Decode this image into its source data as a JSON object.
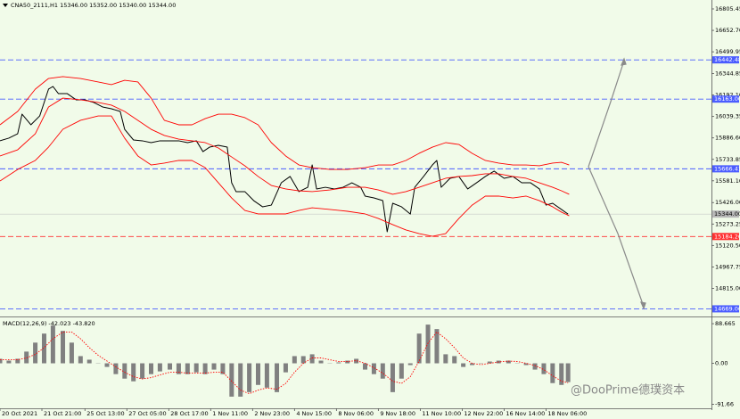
{
  "chart_data": [
    {
      "type": "line",
      "title": "CNA50_2111,H1 15346.00 15352.00 15340.00 15344.00",
      "xlim": [
        0,
        645
      ],
      "ylim": [
        14614.7,
        16868.95
      ],
      "yticks": [
        16805.45,
        {
          "value": 16652.7,
          "label": "16652.70"
        },
        16499.95,
        16344.85,
        {
          "value": 16192.1,
          "label": "16192.10"
        },
        16039.35,
        {
          "value": 15886.6,
          "label": "15886.60"
        },
        15733.85,
        {
          "value": 15581.1,
          "label": "15581.10"
        },
        {
          "value": 15426,
          "label": "15426.00"
        },
        15273.25,
        {
          "value": 15120.5,
          "label": "15120.50"
        },
        14967.75,
        {
          "value": 14815,
          "label": "14815.00"
        }
      ],
      "series": [
        {
          "color": "#000000",
          "x": [
            0,
            8,
            16,
            20,
            28,
            36,
            44,
            48,
            53,
            61,
            69,
            77,
            85,
            93,
            101,
            109,
            113,
            121,
            129,
            137,
            145,
            154,
            162,
            170,
            178,
            184,
            190,
            198,
            206,
            210,
            214,
            222,
            230,
            238,
            246,
            255,
            263,
            271,
            279,
            283,
            287,
            295,
            303,
            311,
            319,
            327,
            331,
            339,
            347,
            351,
            356,
            364,
            372,
            376,
            384,
            392,
            396,
            400,
            408,
            416,
            424,
            432,
            440,
            448,
            457,
            465,
            473,
            481,
            489,
            495,
            501,
            509,
            515
          ],
          "values": [
            15866,
            15885,
            15916,
            16056,
            15980,
            16043,
            16234,
            16253,
            16202,
            16202,
            16158,
            16158,
            16139,
            16107,
            16094,
            16075,
            15948,
            15872,
            15866,
            15853,
            15866,
            15866,
            15866,
            15853,
            15866,
            15789,
            15821,
            15834,
            15821,
            15567,
            15504,
            15504,
            15440,
            15396,
            15408,
            15567,
            15612,
            15504,
            15535,
            15694,
            15523,
            15535,
            15523,
            15535,
            15567,
            15535,
            15472,
            15459,
            15440,
            15218,
            15421,
            15396,
            15344,
            15535,
            15612,
            15694,
            15726,
            15535,
            15599,
            15612,
            15523,
            15567,
            15612,
            15650,
            15599,
            15612,
            15567,
            15567,
            15523,
            15408,
            15421,
            15377,
            15344
          ]
        },
        {
          "color": "#ff0000",
          "x": [
            0,
            16,
            32,
            44,
            57,
            73,
            89,
            101,
            113,
            125,
            137,
            149,
            162,
            174,
            186,
            198,
            210,
            222,
            234,
            246,
            259,
            271,
            283,
            299,
            315,
            331,
            343,
            356,
            368,
            380,
            392,
            404,
            416,
            428,
            440,
            452,
            465,
            477,
            489,
            501,
            509,
            516
          ],
          "values": [
            15980,
            16075,
            16234,
            16310,
            16323,
            16310,
            16285,
            16266,
            16297,
            16285,
            16170,
            16012,
            15980,
            15980,
            16024,
            16056,
            16056,
            16031,
            15980,
            15853,
            15758,
            15694,
            15675,
            15662,
            15662,
            15675,
            15694,
            15694,
            15726,
            15777,
            15821,
            15853,
            15840,
            15777,
            15726,
            15707,
            15694,
            15694,
            15688,
            15707,
            15713,
            15694
          ]
        },
        {
          "color": "#ff0000",
          "x": [
            0,
            16,
            32,
            44,
            57,
            73,
            89,
            101,
            113,
            125,
            137,
            149,
            162,
            174,
            186,
            198,
            210,
            222,
            234,
            246,
            259,
            271,
            283,
            299,
            315,
            331,
            343,
            356,
            368,
            380,
            392,
            404,
            416,
            428,
            440,
            452,
            465,
            477,
            489,
            501,
            509,
            516
          ],
          "values": [
            15758,
            15802,
            15916,
            16107,
            16170,
            16158,
            16139,
            16120,
            16075,
            16012,
            15948,
            15904,
            15878,
            15866,
            15853,
            15815,
            15751,
            15688,
            15612,
            15548,
            15523,
            15510,
            15504,
            15516,
            15535,
            15535,
            15516,
            15485,
            15504,
            15535,
            15567,
            15599,
            15612,
            15618,
            15631,
            15631,
            15612,
            15599,
            15567,
            15535,
            15510,
            15485
          ]
        },
        {
          "color": "#ff0000",
          "x": [
            0,
            16,
            32,
            44,
            57,
            73,
            89,
            101,
            113,
            125,
            137,
            149,
            162,
            174,
            186,
            198,
            210,
            222,
            234,
            246,
            259,
            271,
            283,
            299,
            315,
            331,
            343,
            356,
            368,
            380,
            392,
            404,
            416,
            428,
            440,
            452,
            465,
            477,
            489,
            501,
            509,
            516
          ],
          "values": [
            15580,
            15662,
            15726,
            15821,
            15948,
            16012,
            16043,
            16043,
            15885,
            15758,
            15694,
            15707,
            15726,
            15726,
            15675,
            15567,
            15459,
            15370,
            15345,
            15345,
            15345,
            15370,
            15389,
            15377,
            15364,
            15345,
            15313,
            15269,
            15231,
            15205,
            15186,
            15205,
            15313,
            15408,
            15472,
            15472,
            15459,
            15472,
            15440,
            15396,
            15358,
            15332
          ]
        }
      ],
      "levels": [
        {
          "value": 16442.48,
          "label": "16442.48",
          "color": "#4a5cff"
        },
        {
          "value": 16163,
          "label": "16163.00",
          "color": "#4a5cff"
        },
        {
          "value": 15666.41,
          "label": "15666.41",
          "color": "#4a5cff"
        },
        {
          "value": 15184.26,
          "label": "15184.26",
          "color": "#ff3030"
        },
        {
          "value": 14669.06,
          "label": "14669.06",
          "color": "#4a5cff"
        }
      ],
      "last_price": {
        "value": 15344,
        "label": "15344.00",
        "color": "#b8b8b8"
      }
    },
    {
      "type": "bar",
      "title": "MACD(12,26,9) -42.023 -43.820",
      "xlim": [
        0,
        645
      ],
      "ylim": [
        -100.7,
        100.8
      ],
      "yticks": [
        88.665,
        {
          "value": 0,
          "label": "0.00"
        },
        -91.66
      ],
      "xticks": [
        {
          "value": 0,
          "label": "20 Oct 2021"
        },
        {
          "value": 38,
          "label": "21 Oct 21:00"
        },
        {
          "value": 77,
          "label": "25 Oct 13:00"
        },
        {
          "value": 115,
          "label": "27 Oct 05:00"
        },
        {
          "value": 153,
          "label": "28 Oct 17:00"
        },
        {
          "value": 191,
          "label": "1 Nov 11:00"
        },
        {
          "value": 229,
          "label": "2 Nov 23:00"
        },
        {
          "value": 267,
          "label": "4 Nov 15:00"
        },
        {
          "value": 305,
          "label": "8 Nov 06:00"
        },
        {
          "value": 343,
          "label": "9 Nov 18:00"
        },
        {
          "value": 381,
          "label": "11 Nov 10:00"
        },
        {
          "value": 419,
          "label": "12 Nov 22:00"
        },
        {
          "value": 457,
          "label": "16 Nov 14:00"
        },
        {
          "value": 495,
          "label": "18 Nov 06:00"
        }
      ],
      "x": [
        0,
        8,
        16,
        24,
        32,
        40,
        48,
        57,
        65,
        73,
        81,
        89,
        97,
        105,
        113,
        121,
        129,
        137,
        145,
        154,
        162,
        170,
        178,
        186,
        194,
        202,
        210,
        218,
        226,
        234,
        242,
        251,
        259,
        267,
        275,
        283,
        291,
        299,
        307,
        315,
        323,
        331,
        339,
        347,
        356,
        364,
        372,
        380,
        388,
        396,
        404,
        412,
        420,
        428,
        436,
        444,
        452,
        461,
        469,
        477,
        485,
        493,
        501,
        509,
        515
      ],
      "series": [
        {
          "type": "bar",
          "color": "#808080",
          "values": [
            10.1,
            6.0,
            10.1,
            26.2,
            46.3,
            66.5,
            84.6,
            72.5,
            46.3,
            16.1,
            8.1,
            0,
            -8.1,
            -24.2,
            -34.3,
            -40.3,
            -34.3,
            -24.2,
            -18.1,
            -14.1,
            -24.2,
            -24.2,
            -20.2,
            -24.2,
            -14.1,
            -24.2,
            -74.6,
            -74.6,
            -64.5,
            -48.4,
            -54.4,
            -64.5,
            -20.2,
            16.1,
            16.1,
            20.2,
            6.0,
            0,
            2.0,
            6.0,
            10.1,
            -14.1,
            -24.2,
            -34.3,
            -64.5,
            -34.3,
            -4.0,
            66.5,
            86.6,
            76.6,
            20.2,
            16.1,
            -8.1,
            -4.0,
            0,
            4.0,
            6.0,
            6.0,
            0,
            -4.0,
            -14.1,
            -24.2,
            -44.3,
            -48.4,
            -42.0
          ]
        },
        {
          "type": "line",
          "color": "#ff0000",
          "values": [
            8,
            8,
            8,
            12,
            20,
            35,
            55,
            70,
            70,
            55,
            35,
            18,
            5,
            -8,
            -20,
            -30,
            -35,
            -32,
            -26,
            -20,
            -20,
            -22,
            -22,
            -22,
            -20,
            -20,
            -40,
            -60,
            -68,
            -60,
            -55,
            -58,
            -45,
            -20,
            0,
            12,
            12,
            8,
            4,
            4,
            6,
            0,
            -10,
            -22,
            -40,
            -45,
            -30,
            5,
            45,
            70,
            55,
            35,
            12,
            0,
            -3,
            0,
            3,
            5,
            4,
            0,
            -5,
            -14,
            -28,
            -40,
            -43.8
          ]
        }
      ]
    }
  ],
  "watermark": "@DooPrime德璞资本"
}
